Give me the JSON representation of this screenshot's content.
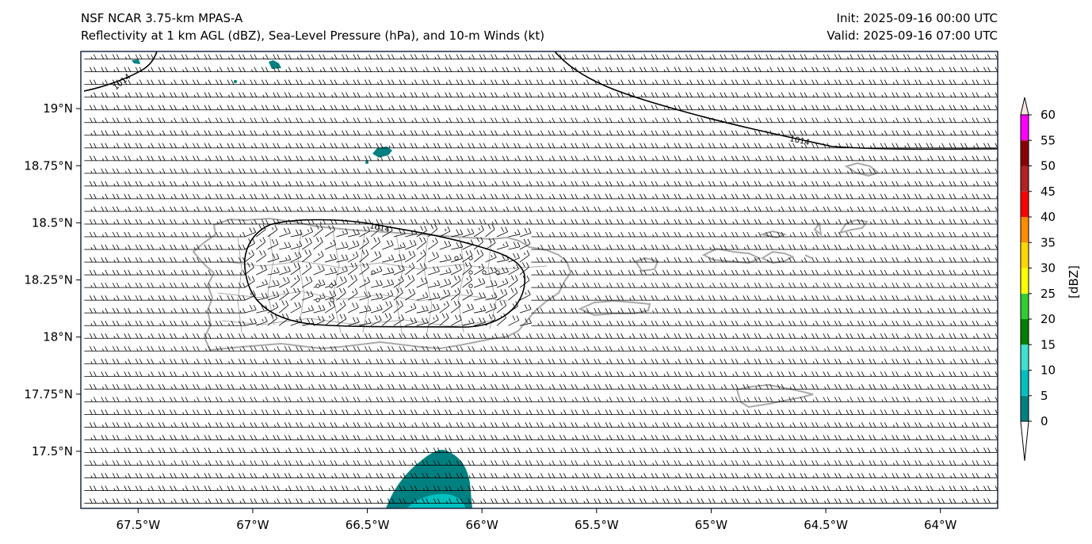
{
  "title": {
    "line1": "NSF NCAR 3.75-km MPAS-A",
    "line2": "Reflectivity at 1 km AGL (dBZ), Sea-Level Pressure (hPa), and 10-m Winds (kt)",
    "init": "Init: 2025-09-16 00:00 UTC",
    "valid": "Valid: 2025-09-16 07:00 UTC"
  },
  "map": {
    "lon_range": [
      -67.75,
      -63.75
    ],
    "lat_range": [
      17.25,
      19.25
    ],
    "x_ticks": [
      {
        "lon": -67.5,
        "label": "67.5°W"
      },
      {
        "lon": -67.0,
        "label": "67°W"
      },
      {
        "lon": -66.5,
        "label": "66.5°W"
      },
      {
        "lon": -66.0,
        "label": "66°W"
      },
      {
        "lon": -65.5,
        "label": "65.5°W"
      },
      {
        "lon": -65.0,
        "label": "65°W"
      },
      {
        "lon": -64.5,
        "label": "64.5°W"
      },
      {
        "lon": -64.0,
        "label": "64°W"
      }
    ],
    "y_ticks": [
      {
        "lat": 19.0,
        "label": "19°N"
      },
      {
        "lat": 18.75,
        "label": "18.75°N"
      },
      {
        "lat": 18.5,
        "label": "18.5°N"
      },
      {
        "lat": 18.25,
        "label": "18.25°N"
      },
      {
        "lat": 18.0,
        "label": "18°N"
      },
      {
        "lat": 17.75,
        "label": "17.75°N"
      },
      {
        "lat": 17.5,
        "label": "17.5°N"
      }
    ],
    "isobar_labels": [
      "1014",
      "1014",
      "1014"
    ],
    "wind_barb_note": "mostly easterly ~10-15 kt barbs across domain"
  },
  "colorbar": {
    "label": "[dBZ]",
    "ticks": [
      "0",
      "5",
      "10",
      "15",
      "20",
      "25",
      "30",
      "35",
      "40",
      "45",
      "50",
      "55",
      "60"
    ],
    "colors": [
      "#008080",
      "#00c0c0",
      "#40e0d0",
      "#008000",
      "#32cd32",
      "#ffff00",
      "#ffd700",
      "#ff8c00",
      "#ff0000",
      "#b22222",
      "#8b0000",
      "#ff00ff",
      "#ffe4e1"
    ]
  },
  "colors": {
    "land_outline": "#a9a9a9",
    "isobar": "#000000",
    "refl_low": "#008080",
    "refl_mid": "#00c0c0"
  }
}
